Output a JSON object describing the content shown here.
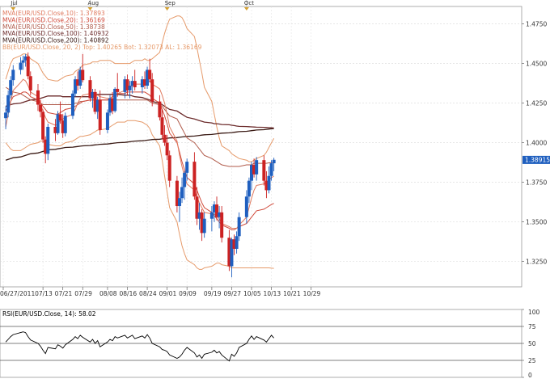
{
  "chart_data": [
    {
      "type": "candlestick",
      "legend": [
        {
          "label": "MVA(EUR/USD.Close,10): 1.37893",
          "color": "#e07a5f"
        },
        {
          "label": "MVA(EUR/USD.Close,20): 1.36169",
          "color": "#d04a3a"
        },
        {
          "label": "MVA(EUR/USD.Close,50): 1.38738",
          "color": "#b05a4a"
        },
        {
          "label": "MVA(EUR/USD.Close,100): 1.40932",
          "color": "#6b2a2a"
        },
        {
          "label": "MVA(EUR/USD.Close,200): 1.40892",
          "color": "#3a1a14"
        },
        {
          "label": "BB(EUR/USD.Close, 20, 2)   Top: 1.40265   Bot: 1.32073   AL: 1.36169",
          "color": "#e69a6a"
        }
      ],
      "month_labels": [
        {
          "label": "Jul",
          "date": "2011-07-01"
        },
        {
          "label": "Aug",
          "date": "2011-08-01"
        },
        {
          "label": "Sep",
          "date": "2011-09-01"
        },
        {
          "label": "Oct",
          "date": "2011-10-03"
        }
      ],
      "x_ticks": [
        "06/27/2011",
        "07/13",
        "07/21",
        "07/29",
        "08/08",
        "08/16",
        "08/24",
        "09/01",
        "09/09",
        "09/19",
        "09/27",
        "10/05",
        "10/13",
        "10/21",
        "10/29"
      ],
      "y_ticks": [
        "1.4750",
        "1.4500",
        "1.4250",
        "1.4000",
        "1.3750",
        "1.3500",
        "1.3250"
      ],
      "ylim": [
        1.309,
        1.486
      ],
      "last_price": "1.38915",
      "colors": {
        "up": "#1f5fbf",
        "down": "#cc2222"
      },
      "candles": [
        [
          1.4155,
          1.423,
          1.4085,
          1.419
        ],
        [
          1.419,
          1.433,
          1.416,
          1.43
        ],
        [
          1.43,
          1.442,
          1.428,
          1.4395
        ],
        [
          1.4395,
          1.449,
          1.436,
          1.446
        ],
        [
          1.446,
          1.454,
          1.443,
          1.4505
        ],
        [
          1.4505,
          1.455,
          1.446,
          1.452
        ],
        [
          1.452,
          1.456,
          1.448,
          1.4545
        ],
        [
          1.4545,
          1.457,
          1.44,
          1.442
        ],
        [
          1.442,
          1.445,
          1.43,
          1.433
        ],
        [
          1.433,
          1.437,
          1.42,
          1.424
        ],
        [
          1.424,
          1.427,
          1.416,
          1.4195
        ],
        [
          1.4195,
          1.421,
          1.4,
          1.402
        ],
        [
          1.402,
          1.404,
          1.387,
          1.393
        ],
        [
          1.393,
          1.412,
          1.389,
          1.41
        ],
        [
          1.41,
          1.415,
          1.401,
          1.406
        ],
        [
          1.406,
          1.42,
          1.405,
          1.418
        ],
        [
          1.418,
          1.426,
          1.412,
          1.414
        ],
        [
          1.414,
          1.418,
          1.403,
          1.406
        ],
        [
          1.406,
          1.419,
          1.404,
          1.417
        ],
        [
          1.417,
          1.433,
          1.415,
          1.431
        ],
        [
          1.431,
          1.442,
          1.429,
          1.44
        ],
        [
          1.44,
          1.445,
          1.433,
          1.436
        ],
        [
          1.436,
          1.448,
          1.434,
          1.446
        ],
        [
          1.446,
          1.456,
          1.438,
          1.4395
        ],
        [
          1.4395,
          1.442,
          1.426,
          1.428
        ],
        [
          1.428,
          1.434,
          1.422,
          1.432
        ],
        [
          1.432,
          1.434,
          1.418,
          1.4195
        ],
        [
          1.4195,
          1.429,
          1.415,
          1.427
        ],
        [
          1.427,
          1.433,
          1.405,
          1.408
        ],
        [
          1.408,
          1.421,
          1.406,
          1.419
        ],
        [
          1.419,
          1.43,
          1.417,
          1.428
        ],
        [
          1.428,
          1.432,
          1.418,
          1.42
        ],
        [
          1.42,
          1.435,
          1.419,
          1.434
        ],
        [
          1.434,
          1.444,
          1.429,
          1.432
        ],
        [
          1.432,
          1.442,
          1.428,
          1.44
        ],
        [
          1.44,
          1.443,
          1.43,
          1.433
        ],
        [
          1.433,
          1.439,
          1.428,
          1.436
        ],
        [
          1.436,
          1.442,
          1.431,
          1.439
        ],
        [
          1.439,
          1.446,
          1.433,
          1.435
        ],
        [
          1.435,
          1.442,
          1.431,
          1.44
        ],
        [
          1.44,
          1.445,
          1.434,
          1.436
        ],
        [
          1.436,
          1.448,
          1.434,
          1.446
        ],
        [
          1.446,
          1.453,
          1.438,
          1.44
        ],
        [
          1.44,
          1.444,
          1.423,
          1.426
        ],
        [
          1.426,
          1.43,
          1.414,
          1.416
        ],
        [
          1.416,
          1.421,
          1.402,
          1.405
        ],
        [
          1.405,
          1.411,
          1.398,
          1.4
        ],
        [
          1.4,
          1.405,
          1.389,
          1.392
        ],
        [
          1.392,
          1.395,
          1.372,
          1.376
        ],
        [
          1.376,
          1.379,
          1.356,
          1.36
        ],
        [
          1.36,
          1.369,
          1.35,
          1.365
        ],
        [
          1.365,
          1.378,
          1.362,
          1.372
        ],
        [
          1.372,
          1.382,
          1.364,
          1.381
        ],
        [
          1.381,
          1.39,
          1.376,
          1.388
        ],
        [
          1.388,
          1.394,
          1.364,
          1.366
        ],
        [
          1.366,
          1.372,
          1.348,
          1.352
        ],
        [
          1.352,
          1.362,
          1.345,
          1.356
        ],
        [
          1.356,
          1.358,
          1.338,
          1.343
        ],
        [
          1.343,
          1.356,
          1.34,
          1.352
        ],
        [
          1.352,
          1.36,
          1.344,
          1.356
        ],
        [
          1.356,
          1.363,
          1.35,
          1.361
        ],
        [
          1.361,
          1.366,
          1.351,
          1.353
        ],
        [
          1.353,
          1.36,
          1.346,
          1.356
        ],
        [
          1.356,
          1.36,
          1.337,
          1.34
        ],
        [
          1.34,
          1.345,
          1.319,
          1.322
        ],
        [
          1.322,
          1.34,
          1.315,
          1.339
        ],
        [
          1.339,
          1.342,
          1.329,
          1.333
        ],
        [
          1.333,
          1.344,
          1.33,
          1.341
        ],
        [
          1.341,
          1.356,
          1.338,
          1.353
        ],
        [
          1.353,
          1.37,
          1.349,
          1.366
        ],
        [
          1.366,
          1.378,
          1.362,
          1.376
        ],
        [
          1.376,
          1.388,
          1.37,
          1.386
        ],
        [
          1.386,
          1.39,
          1.378,
          1.38
        ],
        [
          1.38,
          1.391,
          1.376,
          1.389
        ],
        [
          1.389,
          1.392,
          1.373,
          1.376
        ],
        [
          1.376,
          1.382,
          1.365,
          1.37
        ],
        [
          1.37,
          1.385,
          1.368,
          1.379
        ],
        [
          1.379,
          1.389,
          1.376,
          1.387
        ],
        [
          1.387,
          1.3905,
          1.382,
          1.3892
        ]
      ],
      "ma10": [
        1.41,
        1.418,
        1.426,
        1.433,
        1.438,
        1.44,
        1.439,
        1.436,
        1.432,
        1.429,
        1.425,
        1.42,
        1.416,
        1.413,
        1.411,
        1.412,
        1.414,
        1.415,
        1.416,
        1.418,
        1.421,
        1.425,
        1.428,
        1.43,
        1.431,
        1.431,
        1.43,
        1.43,
        1.429,
        1.428,
        1.428,
        1.429,
        1.43,
        1.431,
        1.433,
        1.434,
        1.435,
        1.436,
        1.437,
        1.437,
        1.438,
        1.438,
        1.439,
        1.437,
        1.434,
        1.43,
        1.425,
        1.418,
        1.41,
        1.401,
        1.392,
        1.385,
        1.379,
        1.374,
        1.37,
        1.366,
        1.362,
        1.359,
        1.356,
        1.355,
        1.355,
        1.354,
        1.352,
        1.349,
        1.347,
        1.346,
        1.346,
        1.346,
        1.348,
        1.353,
        1.359,
        1.365,
        1.37,
        1.373,
        1.374,
        1.375,
        1.376,
        1.3779,
        1.3789
      ],
      "ma20": [
        1.42,
        1.423,
        1.426,
        1.429,
        1.431,
        1.432,
        1.432,
        1.431,
        1.429,
        1.427,
        1.425,
        1.423,
        1.421,
        1.419,
        1.418,
        1.418,
        1.419,
        1.42,
        1.421,
        1.422,
        1.423,
        1.424,
        1.425,
        1.426,
        1.427,
        1.427,
        1.427,
        1.427,
        1.427,
        1.427,
        1.428,
        1.429,
        1.43,
        1.431,
        1.431,
        1.432,
        1.432,
        1.432,
        1.432,
        1.432,
        1.432,
        1.431,
        1.43,
        1.428,
        1.425,
        1.421,
        1.417,
        1.412,
        1.406,
        1.4,
        1.394,
        1.388,
        1.383,
        1.378,
        1.374,
        1.37,
        1.366,
        1.362,
        1.359,
        1.356,
        1.354,
        1.352,
        1.35,
        1.348,
        1.346,
        1.345,
        1.345,
        1.346,
        1.347,
        1.349,
        1.351,
        1.353,
        1.355,
        1.357,
        1.358,
        1.359,
        1.36,
        1.361,
        1.3617
      ],
      "ma50": [
        1.435,
        1.434,
        1.433,
        1.432,
        1.431,
        1.43,
        1.429,
        1.428,
        1.427,
        1.426,
        1.425,
        1.424,
        1.424,
        1.424,
        1.424,
        1.424,
        1.424,
        1.424,
        1.424,
        1.424,
        1.425,
        1.425,
        1.426,
        1.426,
        1.427,
        1.427,
        1.427,
        1.427,
        1.427,
        1.427,
        1.427,
        1.427,
        1.427,
        1.427,
        1.427,
        1.427,
        1.427,
        1.427,
        1.427,
        1.427,
        1.427,
        1.427,
        1.426,
        1.425,
        1.424,
        1.423,
        1.421,
        1.419,
        1.417,
        1.415,
        1.412,
        1.409,
        1.406,
        1.403,
        1.4,
        1.398,
        1.396,
        1.394,
        1.392,
        1.39,
        1.389,
        1.388,
        1.387,
        1.386,
        1.385,
        1.385,
        1.385,
        1.385,
        1.385,
        1.386,
        1.386,
        1.386,
        1.387,
        1.387,
        1.387,
        1.387,
        1.3873,
        1.3874,
        1.3874
      ],
      "ma100": [
        1.423,
        1.4235,
        1.424,
        1.4245,
        1.425,
        1.4255,
        1.426,
        1.4265,
        1.427,
        1.4275,
        1.428,
        1.4285,
        1.429,
        1.4295,
        1.4295,
        1.4295,
        1.4295,
        1.429,
        1.429,
        1.429,
        1.429,
        1.429,
        1.429,
        1.429,
        1.429,
        1.4295,
        1.43,
        1.4305,
        1.4305,
        1.4305,
        1.4305,
        1.4305,
        1.4305,
        1.4305,
        1.43,
        1.43,
        1.43,
        1.4295,
        1.429,
        1.4285,
        1.428,
        1.4275,
        1.427,
        1.426,
        1.425,
        1.424,
        1.423,
        1.422,
        1.421,
        1.42,
        1.419,
        1.418,
        1.417,
        1.416,
        1.415,
        1.4145,
        1.414,
        1.4135,
        1.413,
        1.4125,
        1.412,
        1.412,
        1.4118,
        1.4115,
        1.4113,
        1.411,
        1.4108,
        1.4105,
        1.4103,
        1.4102,
        1.4101,
        1.41,
        1.4099,
        1.4098,
        1.4097,
        1.4096,
        1.4095,
        1.4094,
        1.4093
      ],
      "ma200": [
        1.389,
        1.3895,
        1.39,
        1.3905,
        1.391,
        1.3915,
        1.392,
        1.3925,
        1.393,
        1.3935,
        1.394,
        1.3945,
        1.395,
        1.3955,
        1.3958,
        1.3961,
        1.3964,
        1.3967,
        1.397,
        1.3972,
        1.3974,
        1.3976,
        1.3978,
        1.398,
        1.3982,
        1.3984,
        1.3986,
        1.3988,
        1.399,
        1.3992,
        1.3994,
        1.3996,
        1.3998,
        1.4,
        1.4002,
        1.4004,
        1.4006,
        1.4008,
        1.401,
        1.4012,
        1.4014,
        1.4016,
        1.4018,
        1.402,
        1.4022,
        1.4024,
        1.4026,
        1.4028,
        1.403,
        1.4032,
        1.4034,
        1.4036,
        1.4038,
        1.404,
        1.4042,
        1.4044,
        1.4046,
        1.4048,
        1.405,
        1.4052,
        1.4054,
        1.4056,
        1.4058,
        1.406,
        1.4062,
        1.4064,
        1.4066,
        1.4068,
        1.407,
        1.4072,
        1.4074,
        1.4076,
        1.4078,
        1.408,
        1.4082,
        1.4084,
        1.4086,
        1.4088,
        1.4089
      ],
      "bb_top": [
        1.44,
        1.445,
        1.45,
        1.453,
        1.455,
        1.456,
        1.456,
        1.455,
        1.453,
        1.45,
        1.447,
        1.444,
        1.442,
        1.44,
        1.439,
        1.439,
        1.44,
        1.441,
        1.442,
        1.443,
        1.445,
        1.446,
        1.447,
        1.449,
        1.45,
        1.451,
        1.451,
        1.451,
        1.452,
        1.452,
        1.452,
        1.451,
        1.45,
        1.45,
        1.45,
        1.45,
        1.45,
        1.451,
        1.452,
        1.452,
        1.453,
        1.452,
        1.452,
        1.453,
        1.457,
        1.463,
        1.469,
        1.474,
        1.478,
        1.48,
        1.48,
        1.479,
        1.476,
        1.472,
        1.467,
        1.46,
        1.452,
        1.444,
        1.435,
        1.426,
        1.418,
        1.41,
        1.403,
        1.398,
        1.395,
        1.393,
        1.392,
        1.391,
        1.39,
        1.389,
        1.388,
        1.388,
        1.389,
        1.39,
        1.392,
        1.394,
        1.397,
        1.4,
        1.4027
      ],
      "bb_bot": [
        1.4,
        1.398,
        1.396,
        1.395,
        1.395,
        1.396,
        1.397,
        1.398,
        1.399,
        1.4,
        1.401,
        1.401,
        1.4,
        1.399,
        1.398,
        1.398,
        1.398,
        1.399,
        1.4,
        1.401,
        1.402,
        1.403,
        1.404,
        1.404,
        1.405,
        1.406,
        1.407,
        1.408,
        1.408,
        1.409,
        1.41,
        1.411,
        1.412,
        1.413,
        1.413,
        1.414,
        1.414,
        1.414,
        1.414,
        1.413,
        1.412,
        1.411,
        1.409,
        1.405,
        1.398,
        1.389,
        1.379,
        1.369,
        1.359,
        1.35,
        1.342,
        1.335,
        1.33,
        1.326,
        1.323,
        1.321,
        1.32,
        1.32,
        1.321,
        1.322,
        1.323,
        1.324,
        1.324,
        1.323,
        1.322,
        1.321,
        1.321,
        1.321,
        1.321,
        1.321,
        1.321,
        1.321,
        1.321,
        1.321,
        1.321,
        1.321,
        1.321,
        1.3208,
        1.3207
      ]
    },
    {
      "type": "line",
      "legend": {
        "label": "RSI(EUR/USD.Close, 14): 58.02",
        "color": "#000000"
      },
      "y_ticks": [
        "100",
        "75",
        "50",
        "25",
        "0"
      ],
      "ylim": [
        0,
        100
      ],
      "levels": [
        75,
        50,
        25
      ],
      "values": [
        52,
        56,
        60,
        63,
        66,
        67,
        66,
        60,
        55,
        50,
        46,
        40,
        35,
        44,
        42,
        48,
        46,
        43,
        48,
        56,
        60,
        57,
        62,
        59,
        52,
        56,
        50,
        54,
        45,
        52,
        56,
        54,
        60,
        58,
        62,
        58,
        60,
        62,
        57,
        61,
        58,
        63,
        58,
        50,
        45,
        41,
        40,
        38,
        33,
        28,
        30,
        34,
        40,
        44,
        36,
        30,
        33,
        28,
        34,
        37,
        40,
        36,
        38,
        33,
        24,
        34,
        31,
        36,
        44,
        50,
        56,
        61,
        56,
        60,
        55,
        52,
        57,
        62,
        58
      ]
    }
  ]
}
